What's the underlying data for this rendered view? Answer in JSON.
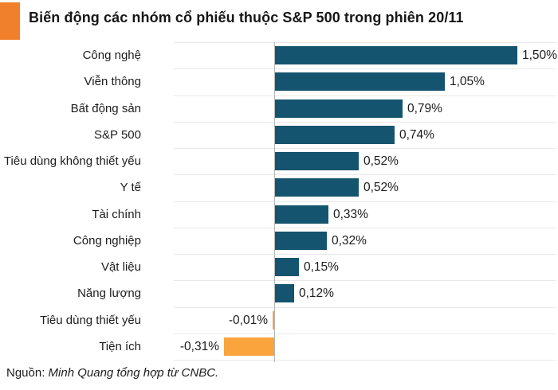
{
  "title": "Biến động các nhóm cổ phiếu thuộc S&P 500 trong phiên 20/11",
  "source": {
    "prefix": "Nguồn:",
    "credit": " Minh Quang tổng hợp từ CNBC."
  },
  "colors": {
    "positive_bar": "#15546F",
    "negative_bar": "#F9A43C",
    "title_square": "#F0802B",
    "gridline": "#E8E8E8",
    "axis_line": "#B5B5B5",
    "text": "#1C1C1C"
  },
  "chart_data": {
    "type": "bar",
    "orientation": "horizontal",
    "title": "Biến động các nhóm cổ phiếu thuộc S&P 500 trong phiên 20/11",
    "unit": "%",
    "decimal_separator": ",",
    "grid": true,
    "xlim": [
      -0.35,
      1.75
    ],
    "categories": [
      "Công nghệ",
      "Viễn thông",
      "Bất động sản",
      "S&P 500",
      "Tiêu dùng không thiết yếu",
      "Y tế",
      "Tài chính",
      "Công nghiệp",
      "Vật liệu",
      "Năng lượng",
      "Tiêu dùng thiết yếu",
      "Tiện ích"
    ],
    "values": [
      1.5,
      1.05,
      0.79,
      0.74,
      0.52,
      0.52,
      0.33,
      0.32,
      0.15,
      0.12,
      -0.01,
      -0.31
    ],
    "value_labels": [
      "1,50%",
      "1,05%",
      "0,79%",
      "0,74%",
      "0,52%",
      "0,52%",
      "0,33%",
      "0,32%",
      "0,15%",
      "0,12%",
      "-0,01%",
      "-0,31%"
    ]
  }
}
